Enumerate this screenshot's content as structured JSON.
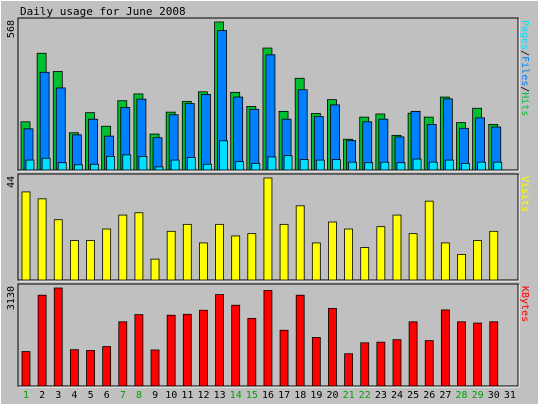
{
  "chart_data": {
    "type": "bar",
    "title": "Daily usage for June 2008",
    "colors": {
      "background": "#c0c0c0",
      "border": "#000000",
      "hits": "#00c030",
      "files": "#0080ff",
      "pages": "#00e0ff",
      "visits": "#ffff00",
      "kbytes": "#ff0000",
      "weekend_label": "#00a000",
      "weekday_label": "#000000"
    },
    "days": [
      "1",
      "2",
      "3",
      "4",
      "5",
      "6",
      "7",
      "8",
      "9",
      "10",
      "11",
      "12",
      "13",
      "14",
      "15",
      "16",
      "17",
      "18",
      "19",
      "20",
      "21",
      "22",
      "23",
      "24",
      "25",
      "26",
      "27",
      "28",
      "29",
      "30",
      "31"
    ],
    "weekend_days": [
      "1",
      "7",
      "8",
      "14",
      "15",
      "21",
      "22",
      "28",
      "29"
    ],
    "panels": [
      {
        "id": "usage",
        "max_label": "568",
        "ylim": [
          0,
          568
        ],
        "legend": [
          {
            "text": "Pages",
            "color_key": "pages"
          },
          {
            "text": "/",
            "color_key": "border"
          },
          {
            "text": "Files",
            "color_key": "files"
          },
          {
            "text": "/",
            "color_key": "border"
          },
          {
            "text": "Hits",
            "color_key": "hits"
          }
        ],
        "series": [
          {
            "name": "Hits",
            "color_key": "hits",
            "values": [
              185,
              448,
              378,
              143,
              220,
              168,
              266,
              292,
              138,
              222,
              263,
              300,
              568,
              298,
              244,
              468,
              225,
              352,
              217,
              270,
              118,
              203,
              215,
              133,
              218,
              203,
              280,
              182,
              237,
              175,
              0
            ]
          },
          {
            "name": "Files",
            "color_key": "files",
            "values": [
              158,
              375,
              315,
              135,
              195,
              130,
              240,
              272,
              124,
              212,
              255,
              290,
              535,
              280,
              233,
              442,
              195,
              308,
              205,
              250,
              113,
              185,
              195,
              127,
              225,
              175,
              273,
              160,
              200,
              165,
              0
            ]
          },
          {
            "name": "Pages",
            "color_key": "pages",
            "values": [
              38,
              45,
              28,
              20,
              22,
              52,
              58,
              52,
              12,
              38,
              48,
              22,
              112,
              32,
              25,
              50,
              55,
              40,
              38,
              40,
              30,
              28,
              30,
              28,
              42,
              30,
              38,
              25,
              30,
              30,
              0
            ]
          }
        ]
      },
      {
        "id": "visits",
        "max_label": "44",
        "ylim": [
          0,
          44
        ],
        "legend": [
          {
            "text": "Visits",
            "color_key": "visits"
          }
        ],
        "series": [
          {
            "name": "Visits",
            "color_key": "visits",
            "values": [
              38,
              35,
              26,
              17,
              17,
              22,
              28,
              29,
              9,
              21,
              24,
              16,
              24,
              19,
              20,
              44,
              24,
              32,
              16,
              25,
              22,
              14,
              23,
              28,
              20,
              34,
              16,
              11,
              17,
              21,
              0
            ]
          }
        ]
      },
      {
        "id": "kbytes",
        "max_label": "3130",
        "ylim": [
          0,
          3130
        ],
        "legend": [
          {
            "text": "KBytes",
            "color_key": "kbytes"
          }
        ],
        "series": [
          {
            "name": "KBytes",
            "color_key": "kbytes",
            "values": [
              1100,
              2900,
              3130,
              1160,
              1135,
              1260,
              2050,
              2280,
              1150,
              2260,
              2290,
              2420,
              2920,
              2580,
              2160,
              3050,
              1780,
              2900,
              1550,
              2480,
              1030,
              1380,
              1400,
              1480,
              2050,
              1450,
              2430,
              2050,
              2010,
              2050,
              0
            ]
          }
        ]
      }
    ]
  }
}
